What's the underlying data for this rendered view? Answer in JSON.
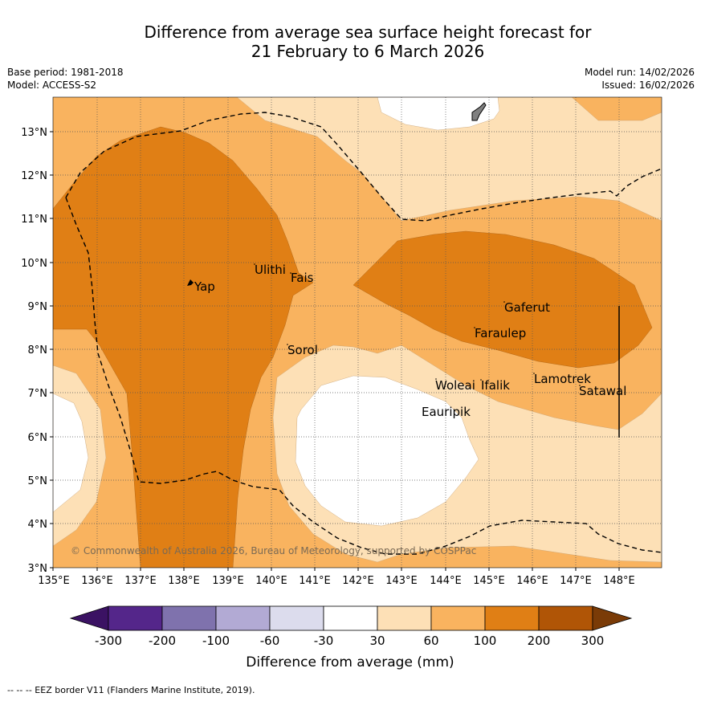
{
  "title_line1": "Difference from average sea surface height forecast for",
  "title_line2": "21 February to 6 March 2026",
  "base_period": "Base period: 1981-2018",
  "model": "Model: ACCESS-S2",
  "model_run": "Model run: 14/02/2026",
  "issued": "Issued: 16/02/2026",
  "copyright": "© Commonwealth of Australia 2026, Bureau of Meteorology, supported by COSPPac",
  "footnote": "--  --  -- EEZ border V11 (Flanders Marine Institute, 2019).",
  "colorbar_label": "Difference from average (mm)",
  "colorbar": {
    "ticks": [
      "-300",
      "-200",
      "-100",
      "-60",
      "-30",
      "30",
      "60",
      "100",
      "200",
      "300"
    ],
    "colors": [
      "#3b1263",
      "#54268a",
      "#7f72ad",
      "#b2aad4",
      "#dcdced",
      "#ffffff",
      "#fde0b6",
      "#f9b35f",
      "#e07f15",
      "#b05506",
      "#7a3b07"
    ]
  },
  "colors": {
    "c30_60": "#fde0b6",
    "c60_100": "#f9b35f",
    "c100_200": "#e07f15",
    "land": "#808080"
  },
  "axes": {
    "x_ticks": [
      "135°E",
      "136°E",
      "137°E",
      "138°E",
      "139°E",
      "140°E",
      "141°E",
      "142°E",
      "143°E",
      "144°E",
      "145°E",
      "146°E",
      "147°E",
      "148°E"
    ],
    "y_ticks": [
      "13°N",
      "12°N",
      "11°N",
      "10°N",
      "9°N",
      "8°N",
      "7°N",
      "6°N",
      "5°N",
      "4°N",
      "3°N"
    ]
  },
  "places": {
    "yap": "Yap",
    "ulithi": "Ulithi",
    "fais": "Fais",
    "sorol": "Sorol",
    "gaferut": "Gaferut",
    "faraulep": "Faraulep",
    "woleai": "Woleai",
    "ifalik": "Ifalik",
    "lamotrek": "Lamotrek",
    "satawal": "Satawal",
    "eauripik": "Eauripik"
  }
}
